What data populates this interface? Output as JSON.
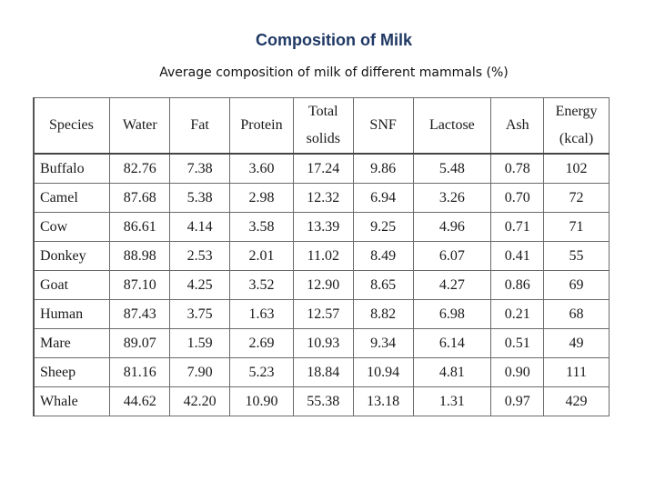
{
  "title": "Composition of Milk",
  "subtitle": "Average composition of milk of different mammals (%)",
  "table": {
    "headers": [
      {
        "line1": "Species",
        "line2": ""
      },
      {
        "line1": "Water",
        "line2": ""
      },
      {
        "line1": "Fat",
        "line2": ""
      },
      {
        "line1": "Protein",
        "line2": ""
      },
      {
        "line1": "Total",
        "line2": "solids"
      },
      {
        "line1": "SNF",
        "line2": ""
      },
      {
        "line1": "Lactose",
        "line2": ""
      },
      {
        "line1": "Ash",
        "line2": ""
      },
      {
        "line1": "Energy",
        "line2": "(kcal)"
      }
    ],
    "rows": [
      [
        "Buffalo",
        "82.76",
        "7.38",
        "3.60",
        "17.24",
        "9.86",
        "5.48",
        "0.78",
        "102"
      ],
      [
        "Camel",
        "87.68",
        "5.38",
        "2.98",
        "12.32",
        "6.94",
        "3.26",
        "0.70",
        "72"
      ],
      [
        "Cow",
        "86.61",
        "4.14",
        "3.58",
        "13.39",
        "9.25",
        "4.96",
        "0.71",
        "71"
      ],
      [
        "Donkey",
        "88.98",
        "2.53",
        "2.01",
        "11.02",
        "8.49",
        "6.07",
        "0.41",
        "55"
      ],
      [
        "Goat",
        "87.10",
        "4.25",
        "3.52",
        "12.90",
        "8.65",
        "4.27",
        "0.86",
        "69"
      ],
      [
        "Human",
        "87.43",
        "3.75",
        "1.63",
        "12.57",
        "8.82",
        "6.98",
        "0.21",
        "68"
      ],
      [
        "Mare",
        "89.07",
        "1.59",
        "2.69",
        "10.93",
        "9.34",
        "6.14",
        "0.51",
        "49"
      ],
      [
        "Sheep",
        "81.16",
        "7.90",
        "5.23",
        "18.84",
        "10.94",
        "4.81",
        "0.90",
        "111"
      ],
      [
        "Whale",
        "44.62",
        "42.20",
        "10.90",
        "55.38",
        "13.18",
        "1.31",
        "0.97",
        "429"
      ]
    ]
  }
}
